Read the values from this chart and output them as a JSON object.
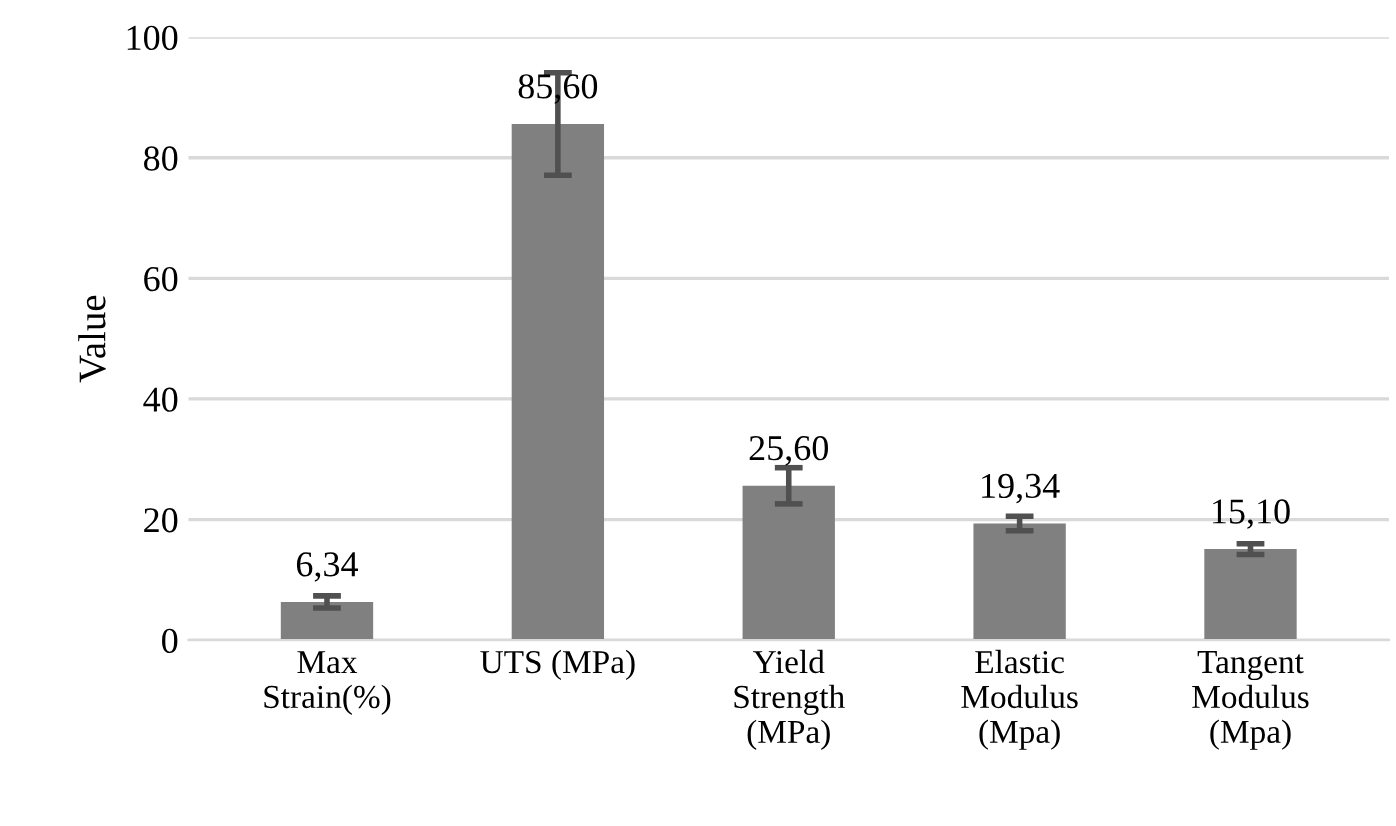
{
  "chart_data": {
    "type": "bar",
    "ylabel": "Value",
    "categories": [
      "Max\nStrain(%)",
      "UTS (MPa)",
      "Yield\nStrength\n(MPa)",
      "Elastic\nModulus\n(Mpa)",
      "Tangent\nModulus\n(Mpa)"
    ],
    "values": [
      6.34,
      85.6,
      25.6,
      19.34,
      15.1
    ],
    "value_labels": [
      "6,34",
      "85,60",
      "25,60",
      "19,34",
      "15,10"
    ],
    "errors": [
      1,
      8.5,
      3,
      1.2,
      0.9
    ],
    "color": "#808080",
    "ylim": [
      0,
      100
    ],
    "yticks": [
      0,
      20,
      40,
      60,
      80,
      100
    ],
    "grid": "y",
    "legend": false
  }
}
